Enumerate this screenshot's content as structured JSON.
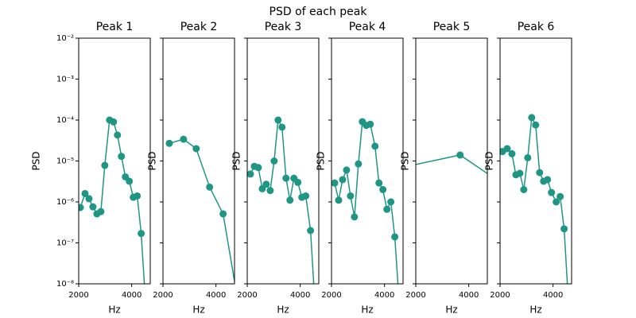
{
  "title": "PSD of each peak",
  "chart_data": [
    {
      "type": "line",
      "title": "Peak 1",
      "xlabel": "Hz",
      "ylabel": "PSD",
      "log_y": true,
      "color": "#1f9683",
      "x": [
        2060,
        2239,
        2388,
        2537,
        2687,
        2836,
        2985,
        3164,
        3313,
        3463,
        3612,
        3761,
        3910,
        4060,
        4209,
        4358,
        4507
      ],
      "values": [
        7.3e-07,
        1.6e-06,
        1.2e-06,
        7.6e-07,
        5.1e-07,
        5.8e-07,
        7.8e-06,
        0.0001,
        9e-05,
        4.3e-05,
        1.3e-05,
        4.1e-06,
        3.2e-06,
        1.3e-06,
        1.4e-06,
        1.7e-07,
        5e-09
      ],
      "xlim": [
        2000,
        4700
      ],
      "ylim": [
        1e-08,
        0.01
      ],
      "xticks": [
        2000,
        4000
      ],
      "yticks": [
        {
          "value": 1e-08,
          "label": "10⁻⁸"
        },
        {
          "value": 1e-07,
          "label": "10⁻⁷"
        },
        {
          "value": 1e-06,
          "label": "10⁻⁶"
        },
        {
          "value": 1e-05,
          "label": "10⁻⁵"
        },
        {
          "value": 0.0001,
          "label": "10⁻⁴"
        },
        {
          "value": 0.001,
          "label": "10⁻³"
        },
        {
          "value": 0.01,
          "label": "10⁻²"
        }
      ]
    },
    {
      "type": "line",
      "title": "Peak 2",
      "xlabel": "Hz",
      "ylabel": "PSD",
      "log_y": true,
      "color": "#1f9683",
      "x": [
        2239,
        2776,
        3254,
        3761,
        4269,
        4776
      ],
      "values": [
        2.7e-05,
        3.4e-05,
        2e-05,
        2.3e-06,
        5.1e-07,
        6e-09
      ],
      "xlim": [
        2000,
        4700
      ],
      "ylim": [
        1e-08,
        0.01
      ],
      "xticks": [
        2000,
        4000
      ]
    },
    {
      "type": "line",
      "title": "Peak 3",
      "xlabel": "Hz",
      "ylabel": "PSD",
      "log_y": true,
      "color": "#1f9683",
      "x": [
        2119,
        2269,
        2418,
        2567,
        2716,
        2866,
        3015,
        3164,
        3313,
        3463,
        3612,
        3761,
        3910,
        4060,
        4209,
        4388,
        4537
      ],
      "values": [
        4.8e-06,
        7.4e-06,
        6.9e-06,
        2.1e-06,
        2.7e-06,
        1.9e-06,
        1e-05,
        0.0001,
        6.7e-05,
        3.8e-06,
        1.1e-06,
        3.8e-06,
        3e-06,
        1.3e-06,
        1.4e-06,
        2e-07,
        5e-09
      ],
      "xlim": [
        2000,
        4700
      ],
      "ylim": [
        1e-08,
        0.01
      ],
      "xticks": [
        2000,
        4000
      ]
    },
    {
      "type": "line",
      "title": "Peak 4",
      "xlabel": "Hz",
      "ylabel": "PSD",
      "log_y": true,
      "color": "#1f9683",
      "x": [
        2119,
        2269,
        2418,
        2567,
        2716,
        2866,
        3015,
        3164,
        3313,
        3463,
        3642,
        3791,
        3940,
        4090,
        4239,
        4388,
        4537
      ],
      "values": [
        2.9e-06,
        1.1e-06,
        3.5e-06,
        6e-06,
        1.4e-06,
        4.3e-07,
        8.5e-06,
        9.1e-05,
        7.4e-05,
        7.9e-05,
        2.3e-05,
        2.9e-06,
        2e-06,
        6.6e-07,
        1e-06,
        1.4e-07,
        5e-09
      ],
      "xlim": [
        2000,
        4700
      ],
      "ylim": [
        1e-08,
        0.01
      ],
      "xticks": [
        2000,
        4000
      ]
    },
    {
      "type": "line",
      "title": "Peak 5",
      "xlabel": "Hz",
      "ylabel": "PSD",
      "log_y": true,
      "color": "#1f9683",
      "x": [
        1672,
        3672,
        5672
      ],
      "values": [
        7.4e-06,
        1.4e-05,
        1.85e-06
      ],
      "xlim": [
        2000,
        4700
      ],
      "ylim": [
        1e-08,
        0.01
      ],
      "xticks": [
        2000,
        4000
      ]
    },
    {
      "type": "line",
      "title": "Peak 6",
      "xlabel": "Hz",
      "ylabel": "PSD",
      "log_y": true,
      "color": "#1f9683",
      "x": [
        2090,
        2269,
        2448,
        2597,
        2746,
        2896,
        3045,
        3194,
        3343,
        3493,
        3642,
        3791,
        3940,
        4119,
        4269,
        4418,
        4567
      ],
      "values": [
        1.7e-05,
        2e-05,
        1.5e-05,
        4.6e-06,
        5e-06,
        2e-06,
        1.2e-05,
        0.000115,
        7.6e-05,
        5.2e-06,
        3.2e-06,
        3.5e-06,
        1.7e-06,
        1e-06,
        1.35e-06,
        2.2e-07,
        5e-09
      ],
      "xlim": [
        2000,
        4700
      ],
      "ylim": [
        1e-08,
        0.01
      ],
      "xticks": [
        2000,
        4000
      ]
    }
  ]
}
